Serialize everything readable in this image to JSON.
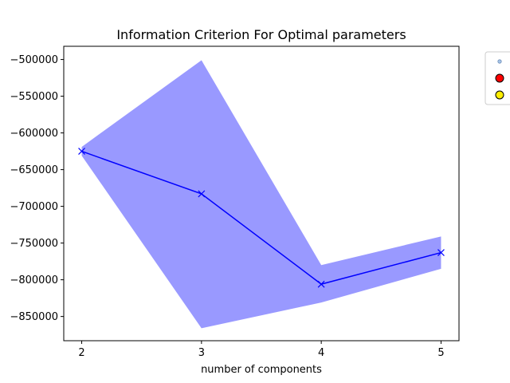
{
  "chart_data": {
    "type": "line",
    "title": "Information Criterion For Optimal parameters",
    "xlabel": "number of components",
    "ylabel": "",
    "x": [
      2,
      3,
      4,
      5
    ],
    "xlim": [
      1.85,
      5.15
    ],
    "ylim": [
      -883000,
      -482000
    ],
    "xticks": [
      2,
      3,
      4,
      5
    ],
    "yticks": [
      -850000,
      -800000,
      -750000,
      -700000,
      -650000,
      -600000,
      -550000,
      -500000
    ],
    "ytick_labels": [
      "−850000",
      "−800000",
      "−750000",
      "−700000",
      "−650000",
      "−600000",
      "−550000",
      "−500000"
    ],
    "grid": false,
    "series": [
      {
        "values": [
          -625000,
          -683000,
          -806000,
          -763000
        ],
        "marker": "x",
        "color": "#0000ff"
      }
    ],
    "band": {
      "upper": [
        -619000,
        -501000,
        -780000,
        -741000
      ],
      "lower": [
        -631000,
        -866000,
        -831000,
        -785000
      ],
      "color": "#9999ff"
    },
    "legend": {
      "placement": "outside-top-right",
      "entries": [
        {
          "marker": "circle-small",
          "color": "#a6c4e8"
        },
        {
          "marker": "circle",
          "color": "#ff0000"
        },
        {
          "marker": "circle",
          "color": "#ffee00"
        }
      ]
    }
  }
}
